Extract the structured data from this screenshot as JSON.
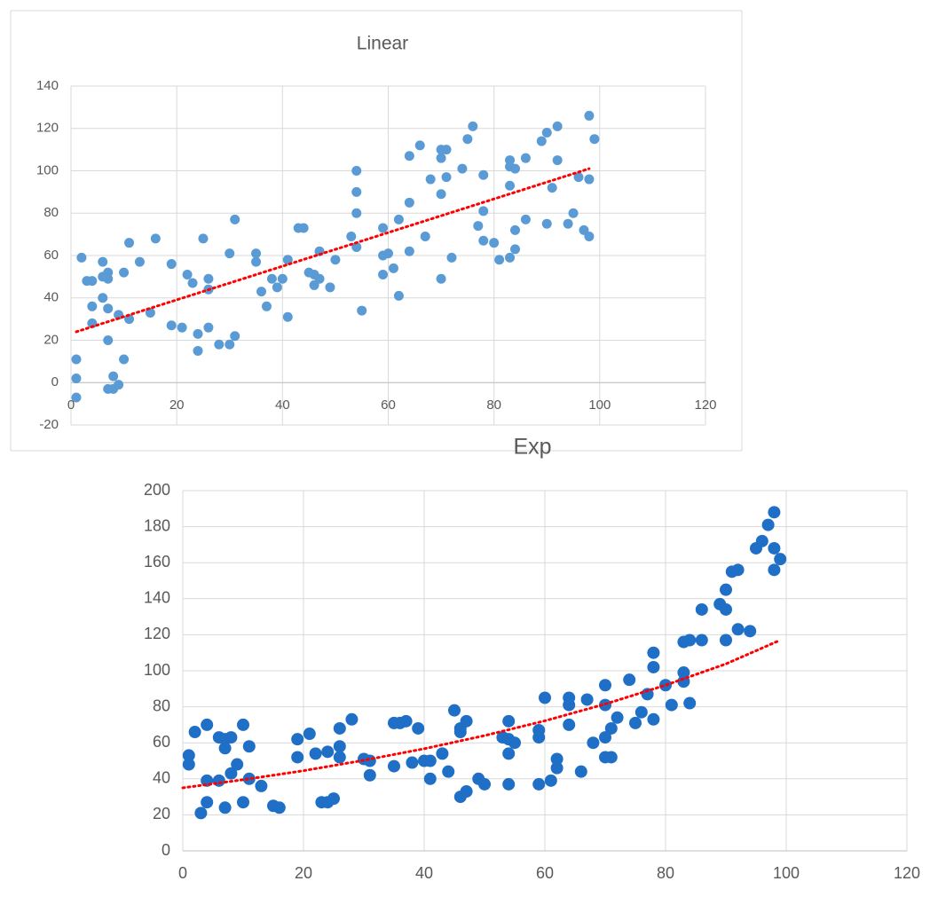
{
  "chart_data": [
    {
      "type": "scatter",
      "title": "Linear",
      "x": [
        1,
        1,
        1,
        2,
        3,
        4,
        4,
        4,
        6,
        6,
        6,
        7,
        7,
        7,
        7,
        7,
        8,
        8,
        9,
        9,
        10,
        10,
        11,
        11,
        13,
        15,
        16,
        19,
        19,
        21,
        22,
        23,
        24,
        24,
        25,
        26,
        26,
        26,
        28,
        30,
        30,
        31,
        31,
        35,
        35,
        36,
        37,
        38,
        39,
        40,
        41,
        41,
        43,
        44,
        45,
        46,
        46,
        47,
        47,
        49,
        50,
        53,
        54,
        54,
        54,
        54,
        55,
        59,
        59,
        59,
        60,
        61,
        62,
        62,
        64,
        64,
        64,
        66,
        67,
        68,
        70,
        70,
        70,
        70,
        71,
        71,
        72,
        74,
        75,
        76,
        77,
        78,
        78,
        78,
        80,
        81,
        83,
        83,
        83,
        83,
        84,
        84,
        84,
        86,
        86,
        89,
        90,
        90,
        91,
        92,
        92,
        94,
        95,
        96,
        97,
        98,
        98,
        98,
        99
      ],
      "values": [
        11,
        2,
        -7,
        59,
        48,
        48,
        36,
        28,
        57,
        50,
        40,
        52,
        49,
        35,
        20,
        -3,
        3,
        -3,
        -1,
        32,
        52,
        11,
        66,
        30,
        57,
        33,
        68,
        56,
        27,
        26,
        51,
        47,
        23,
        15,
        68,
        49,
        44,
        26,
        18,
        61,
        18,
        77,
        22,
        61,
        57,
        43,
        36,
        49,
        45,
        49,
        58,
        31,
        73,
        73,
        52,
        51,
        46,
        62,
        49,
        45,
        58,
        69,
        100,
        90,
        80,
        64,
        34,
        73,
        60,
        51,
        61,
        54,
        77,
        41,
        107,
        85,
        62,
        112,
        69,
        96,
        110,
        106,
        89,
        49,
        110,
        97,
        59,
        101,
        115,
        121,
        74,
        98,
        81,
        67,
        66,
        58,
        105,
        102,
        93,
        59,
        101,
        72,
        63,
        106,
        77,
        114,
        118,
        75,
        92,
        121,
        105,
        75,
        80,
        97,
        72,
        69,
        96,
        126,
        115
      ],
      "color": "#5b9bd5",
      "xlim": [
        0,
        120
      ],
      "ylim": [
        -20,
        140
      ],
      "xticks": [
        0,
        20,
        40,
        60,
        80,
        100,
        120
      ],
      "yticks": [
        -20,
        0,
        20,
        40,
        60,
        80,
        100,
        120,
        140
      ],
      "grid": true,
      "trendline": {
        "x": [
          1,
          98
        ],
        "values": [
          24,
          101
        ],
        "color": "#ff0000"
      }
    },
    {
      "type": "scatter",
      "title": "Exp",
      "x": [
        1,
        1,
        2,
        3,
        4,
        4,
        4,
        6,
        6,
        7,
        7,
        7,
        8,
        8,
        9,
        10,
        10,
        11,
        11,
        13,
        15,
        16,
        19,
        19,
        21,
        22,
        23,
        24,
        24,
        25,
        26,
        26,
        26,
        28,
        30,
        31,
        31,
        35,
        35,
        36,
        37,
        38,
        39,
        40,
        41,
        41,
        43,
        44,
        45,
        46,
        46,
        46,
        47,
        47,
        49,
        50,
        53,
        54,
        54,
        54,
        54,
        55,
        59,
        59,
        59,
        60,
        61,
        62,
        62,
        64,
        64,
        64,
        66,
        67,
        68,
        70,
        70,
        70,
        70,
        71,
        71,
        72,
        74,
        75,
        76,
        77,
        78,
        78,
        78,
        80,
        81,
        83,
        83,
        83,
        84,
        84,
        86,
        86,
        89,
        90,
        90,
        90,
        91,
        92,
        92,
        94,
        95,
        96,
        97,
        98,
        98,
        98,
        99
      ],
      "values": [
        53,
        48,
        66,
        21,
        39,
        70,
        27,
        63,
        39,
        62,
        57,
        24,
        63,
        43,
        48,
        70,
        27,
        58,
        40,
        36,
        25,
        24,
        62,
        52,
        65,
        54,
        27,
        55,
        27,
        29,
        68,
        58,
        52,
        73,
        51,
        50,
        42,
        71,
        47,
        71,
        72,
        49,
        68,
        50,
        50,
        40,
        54,
        44,
        78,
        68,
        66,
        30,
        72,
        33,
        40,
        37,
        63,
        72,
        62,
        54,
        37,
        60,
        67,
        63,
        37,
        85,
        39,
        51,
        46,
        85,
        81,
        70,
        44,
        84,
        60,
        92,
        81,
        63,
        52,
        52,
        68,
        74,
        95,
        71,
        77,
        87,
        110,
        102,
        73,
        92,
        81,
        99,
        116,
        94,
        117,
        82,
        134,
        117,
        137,
        145,
        134,
        117,
        155,
        156,
        123,
        122,
        168,
        172,
        181,
        188,
        168,
        156,
        162
      ],
      "color": "#1f6fc6",
      "xlim": [
        0,
        120
      ],
      "ylim": [
        0,
        200
      ],
      "xticks": [
        0,
        20,
        40,
        60,
        80,
        100,
        120
      ],
      "yticks": [
        0,
        20,
        40,
        60,
        80,
        100,
        120,
        140,
        160,
        180,
        200
      ],
      "grid": true,
      "trendline": {
        "x": [
          0,
          10,
          20,
          30,
          40,
          50,
          60,
          70,
          80,
          90,
          99
        ],
        "values": [
          35,
          39.5,
          44.5,
          50.3,
          56.7,
          64,
          72.2,
          81.5,
          92,
          103.8,
          117
        ],
        "color": "#ff0000"
      }
    }
  ]
}
